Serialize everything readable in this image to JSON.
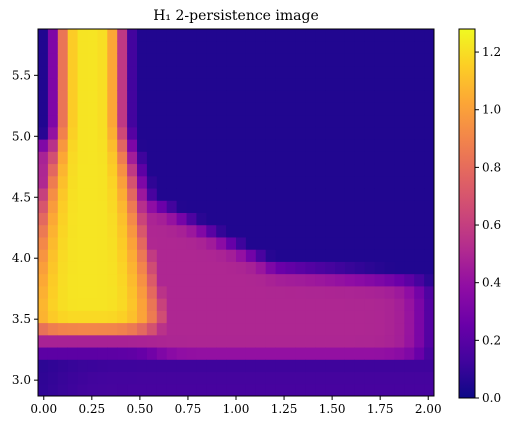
{
  "chart_data": {
    "type": "heatmap",
    "title": "H₁ 2-persistence image",
    "colormap": "plasma",
    "xlim": [
      -0.03,
      2.03
    ],
    "ylim": [
      2.87,
      5.88
    ],
    "x_ticks": [
      0.0,
      0.25,
      0.5,
      0.75,
      1.0,
      1.25,
      1.5,
      1.75,
      2.0
    ],
    "x_tick_labels": [
      "0.00",
      "0.25",
      "0.50",
      "0.75",
      "1.00",
      "1.25",
      "1.50",
      "1.75",
      "2.00"
    ],
    "y_ticks": [
      3.0,
      3.5,
      4.0,
      4.5,
      5.0,
      5.5
    ],
    "y_tick_labels": [
      "3.0",
      "3.5",
      "4.0",
      "4.5",
      "5.0",
      "5.5"
    ],
    "colorbar": {
      "range": [
        0.0,
        1.28
      ],
      "ticks": [
        0.0,
        0.2,
        0.4,
        0.6,
        0.8,
        1.0,
        1.2
      ],
      "tick_labels": [
        "0.0",
        "0.2",
        "0.4",
        "0.6",
        "0.8",
        "1.0",
        "1.2"
      ]
    },
    "grid": false
  }
}
